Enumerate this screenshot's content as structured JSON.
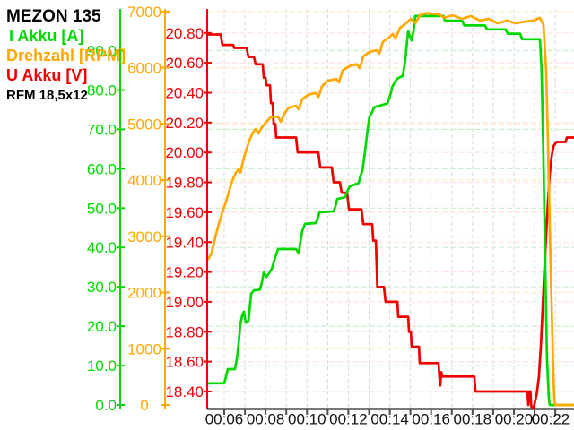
{
  "chart_data": {
    "type": "line",
    "title": "MEZON 135",
    "annotation": "RFM 18,5x12",
    "legend": [
      {
        "label": "I Akku [A]",
        "color": "#00d800"
      },
      {
        "label": "Drehzahl [RPM]",
        "color": "#ffa800"
      },
      {
        "label": "U Akku [V]",
        "color": "#ee0000"
      }
    ],
    "grid": {
      "vertical_color": "#d9d9d9",
      "x_axis_color": "#4d4d4d",
      "x_label_color": "#111111"
    },
    "x_axis": {
      "unit": "mm:ss",
      "tick_from": 6,
      "tick_to": 22,
      "tick_step": 1,
      "range_minutes": [
        5.24,
        22.91
      ],
      "labeled_ticks": [
        {
          "t": 6,
          "label": "00:06"
        },
        {
          "t": 8,
          "label": "00:08"
        },
        {
          "t": 10,
          "label": "00:10"
        },
        {
          "t": 12,
          "label": "00:12"
        },
        {
          "t": 14,
          "label": "00:14"
        },
        {
          "t": 16,
          "label": "00:16"
        },
        {
          "t": 18,
          "label": "00:18"
        },
        {
          "t": 20,
          "label": "00:20"
        },
        {
          "t": 22,
          "label": "00:22"
        }
      ]
    },
    "y_axes": [
      {
        "id": "voltage",
        "label": "U Akku [V]",
        "color": "#ee0000",
        "grid_color": "#ffe2e2",
        "range": [
          18.29,
          20.96
        ],
        "ticks": [
          {
            "v": 18.4,
            "label": "18.40"
          },
          {
            "v": 18.6,
            "label": "18.60"
          },
          {
            "v": 18.8,
            "label": "18.80"
          },
          {
            "v": 19.0,
            "label": "19.00"
          },
          {
            "v": 19.2,
            "label": "19.20"
          },
          {
            "v": 19.4,
            "label": "19.40"
          },
          {
            "v": 19.6,
            "label": "19.60"
          },
          {
            "v": 19.8,
            "label": "19.80"
          },
          {
            "v": 20.0,
            "label": "20.00"
          },
          {
            "v": 20.2,
            "label": "20.20"
          },
          {
            "v": 20.4,
            "label": "20.40"
          },
          {
            "v": 20.6,
            "label": "20.60"
          },
          {
            "v": 20.8,
            "label": "20.80"
          }
        ]
      },
      {
        "id": "rpm",
        "label": "Drehzahl [RPM]",
        "color": "#ffa800",
        "grid_color": "#ffeccb",
        "range": [
          -64,
          7046
        ],
        "ticks": [
          {
            "v": 0,
            "label": "0"
          },
          {
            "v": 1000,
            "label": "1000"
          },
          {
            "v": 2000,
            "label": "2000"
          },
          {
            "v": 3000,
            "label": "3000"
          },
          {
            "v": 4000,
            "label": "4000"
          },
          {
            "v": 5000,
            "label": "5000"
          },
          {
            "v": 6000,
            "label": "6000"
          },
          {
            "v": 7000,
            "label": "7000"
          }
        ]
      },
      {
        "id": "current",
        "label": "I Akku [A]",
        "color": "#00d800",
        "grid_color": "#cdeecd",
        "range": [
          -0.9,
          100.6
        ],
        "ticks": [
          {
            "v": 0,
            "label": "0.0"
          },
          {
            "v": 10,
            "label": "10.0"
          },
          {
            "v": 20,
            "label": "20.0"
          },
          {
            "v": 30,
            "label": "30.0"
          },
          {
            "v": 40,
            "label": "40.0"
          },
          {
            "v": 50,
            "label": "50.0"
          },
          {
            "v": 60,
            "label": "60.0"
          },
          {
            "v": 70,
            "label": "70.0"
          },
          {
            "v": 80,
            "label": "80.0"
          },
          {
            "v": 90,
            "label": "90.0"
          }
        ]
      }
    ],
    "series": [
      {
        "name": "U Akku [V]",
        "axis": "voltage",
        "color": "#ee0000",
        "unit": "V",
        "points": [
          [
            5.24,
            20.79
          ],
          [
            5.83,
            20.79
          ],
          [
            5.91,
            20.72
          ],
          [
            6.43,
            20.72
          ],
          [
            6.48,
            20.7
          ],
          [
            7.08,
            20.7
          ],
          [
            7.17,
            20.64
          ],
          [
            7.43,
            20.64
          ],
          [
            7.52,
            20.59
          ],
          [
            7.86,
            20.59
          ],
          [
            7.91,
            20.5
          ],
          [
            8.0,
            20.5
          ],
          [
            8.04,
            20.45
          ],
          [
            8.21,
            20.45
          ],
          [
            8.26,
            20.33
          ],
          [
            8.34,
            20.33
          ],
          [
            8.39,
            20.19
          ],
          [
            8.47,
            20.19
          ],
          [
            8.51,
            20.1
          ],
          [
            9.47,
            20.1
          ],
          [
            9.55,
            20.0
          ],
          [
            10.55,
            20.0
          ],
          [
            10.64,
            19.9
          ],
          [
            11.2,
            19.9
          ],
          [
            11.29,
            19.8
          ],
          [
            11.59,
            19.8
          ],
          [
            11.68,
            19.73
          ],
          [
            11.94,
            19.73
          ],
          [
            12.03,
            19.62
          ],
          [
            12.63,
            19.62
          ],
          [
            12.72,
            19.52
          ],
          [
            13.15,
            19.52
          ],
          [
            13.2,
            19.41
          ],
          [
            13.33,
            19.41
          ],
          [
            13.4,
            19.1
          ],
          [
            13.72,
            19.1
          ],
          [
            13.8,
            19.0
          ],
          [
            14.37,
            19.0
          ],
          [
            14.41,
            18.9
          ],
          [
            14.89,
            18.9
          ],
          [
            14.93,
            18.8
          ],
          [
            15.02,
            18.8
          ],
          [
            15.06,
            18.7
          ],
          [
            15.41,
            18.7
          ],
          [
            15.45,
            18.59
          ],
          [
            16.36,
            18.59
          ],
          [
            16.4,
            18.5
          ],
          [
            16.44,
            18.44
          ],
          [
            16.49,
            18.53
          ],
          [
            16.54,
            18.5
          ],
          [
            18.09,
            18.5
          ],
          [
            18.14,
            18.4
          ],
          [
            20.65,
            18.4
          ],
          [
            20.7,
            18.31
          ],
          [
            20.74,
            18.4
          ],
          [
            20.8,
            18.4
          ],
          [
            20.84,
            18.3
          ],
          [
            20.95,
            18.29
          ],
          [
            21.1,
            18.38
          ],
          [
            21.21,
            18.5
          ],
          [
            21.3,
            18.7
          ],
          [
            21.39,
            18.95
          ],
          [
            21.47,
            19.2
          ],
          [
            21.56,
            19.45
          ],
          [
            21.65,
            19.67
          ],
          [
            21.73,
            19.85
          ],
          [
            21.82,
            19.97
          ],
          [
            21.91,
            20.04
          ],
          [
            22.05,
            20.07
          ],
          [
            22.5,
            20.07
          ],
          [
            22.56,
            20.1
          ],
          [
            22.91,
            20.1
          ]
        ]
      },
      {
        "name": "I Akku [A]",
        "axis": "current",
        "color": "#00d800",
        "unit": "A",
        "points": [
          [
            5.24,
            5.5
          ],
          [
            6.0,
            5.5
          ],
          [
            6.09,
            7.3
          ],
          [
            6.17,
            9.1
          ],
          [
            6.52,
            9.1
          ],
          [
            6.61,
            11.8
          ],
          [
            6.69,
            15.3
          ],
          [
            6.78,
            20.5
          ],
          [
            6.87,
            22.8
          ],
          [
            6.95,
            23.7
          ],
          [
            7.04,
            20.9
          ],
          [
            7.17,
            21.4
          ],
          [
            7.3,
            28.2
          ],
          [
            7.43,
            29.1
          ],
          [
            7.73,
            29.3
          ],
          [
            7.82,
            31.2
          ],
          [
            7.91,
            33.7
          ],
          [
            8.04,
            32.5
          ],
          [
            8.17,
            33.5
          ],
          [
            8.3,
            34.6
          ],
          [
            8.43,
            36.9
          ],
          [
            8.6,
            39.6
          ],
          [
            9.47,
            39.6
          ],
          [
            9.6,
            38.5
          ],
          [
            9.68,
            41.4
          ],
          [
            9.77,
            44.2
          ],
          [
            9.9,
            46.0
          ],
          [
            10.42,
            46.2
          ],
          [
            10.51,
            47.1
          ],
          [
            10.6,
            48.9
          ],
          [
            11.29,
            49.2
          ],
          [
            11.38,
            50.5
          ],
          [
            11.46,
            52.3
          ],
          [
            11.85,
            52.8
          ],
          [
            11.94,
            54.2
          ],
          [
            12.07,
            55.5
          ],
          [
            12.5,
            56.4
          ],
          [
            12.59,
            58.3
          ],
          [
            12.68,
            59.4
          ],
          [
            12.81,
            64.7
          ],
          [
            12.94,
            70.3
          ],
          [
            13.02,
            73.3
          ],
          [
            13.15,
            74.4
          ],
          [
            13.24,
            75.6
          ],
          [
            13.89,
            76.6
          ],
          [
            14.07,
            79.5
          ],
          [
            14.11,
            80.6
          ],
          [
            14.24,
            82.0
          ],
          [
            14.37,
            82.9
          ],
          [
            14.63,
            83.6
          ],
          [
            14.76,
            88.0
          ],
          [
            14.84,
            92.5
          ],
          [
            14.89,
            94.9
          ],
          [
            15.06,
            92.6
          ],
          [
            15.15,
            95.0
          ],
          [
            15.23,
            98.8
          ],
          [
            16.6,
            98.8
          ],
          [
            16.67,
            97.6
          ],
          [
            17.5,
            97.6
          ],
          [
            17.6,
            96.4
          ],
          [
            18.6,
            96.4
          ],
          [
            18.7,
            95.4
          ],
          [
            19.6,
            95.4
          ],
          [
            19.7,
            94.3
          ],
          [
            20.3,
            94.3
          ],
          [
            20.4,
            92.9
          ],
          [
            21.26,
            92.9
          ],
          [
            21.34,
            84.7
          ],
          [
            21.43,
            61.9
          ],
          [
            21.52,
            34.6
          ],
          [
            21.6,
            11.8
          ],
          [
            21.69,
            1.6
          ],
          [
            21.73,
            0
          ],
          [
            22.91,
            0
          ]
        ]
      },
      {
        "name": "Drehzahl [RPM]",
        "axis": "rpm",
        "color": "#ffa800",
        "unit": "RPM",
        "points": [
          [
            5.24,
            2600
          ],
          [
            5.39,
            2700
          ],
          [
            5.57,
            2990
          ],
          [
            5.74,
            3220
          ],
          [
            5.91,
            3430
          ],
          [
            6.09,
            3620
          ],
          [
            6.26,
            3840
          ],
          [
            6.39,
            3990
          ],
          [
            6.56,
            4130
          ],
          [
            6.69,
            4190
          ],
          [
            6.78,
            4130
          ],
          [
            6.91,
            4340
          ],
          [
            7.04,
            4500
          ],
          [
            7.21,
            4700
          ],
          [
            7.39,
            4850
          ],
          [
            7.52,
            4910
          ],
          [
            7.65,
            4830
          ],
          [
            7.82,
            4940
          ],
          [
            8.04,
            5040
          ],
          [
            8.25,
            5120
          ],
          [
            8.6,
            5130
          ],
          [
            8.73,
            5040
          ],
          [
            8.95,
            5210
          ],
          [
            9.12,
            5290
          ],
          [
            9.47,
            5320
          ],
          [
            9.6,
            5260
          ],
          [
            9.77,
            5440
          ],
          [
            10.07,
            5520
          ],
          [
            10.42,
            5550
          ],
          [
            10.55,
            5480
          ],
          [
            10.73,
            5670
          ],
          [
            11.03,
            5770
          ],
          [
            11.42,
            5800
          ],
          [
            11.55,
            5740
          ],
          [
            11.72,
            5950
          ],
          [
            12.07,
            6030
          ],
          [
            12.42,
            6060
          ],
          [
            12.55,
            5990
          ],
          [
            12.72,
            6200
          ],
          [
            13.02,
            6280
          ],
          [
            13.37,
            6310
          ],
          [
            13.5,
            6250
          ],
          [
            13.67,
            6460
          ],
          [
            13.98,
            6540
          ],
          [
            14.15,
            6600
          ],
          [
            14.28,
            6520
          ],
          [
            14.5,
            6710
          ],
          [
            14.76,
            6780
          ],
          [
            15.02,
            6870
          ],
          [
            15.24,
            6790
          ],
          [
            15.45,
            6930
          ],
          [
            15.75,
            6970
          ],
          [
            16.4,
            6950
          ],
          [
            16.62,
            6890
          ],
          [
            17.05,
            6930
          ],
          [
            17.49,
            6870
          ],
          [
            17.92,
            6920
          ],
          [
            18.35,
            6840
          ],
          [
            18.79,
            6870
          ],
          [
            19.22,
            6790
          ],
          [
            19.66,
            6840
          ],
          [
            20.09,
            6790
          ],
          [
            20.52,
            6820
          ],
          [
            20.96,
            6840
          ],
          [
            21.26,
            6890
          ],
          [
            21.43,
            6760
          ],
          [
            21.56,
            5930
          ],
          [
            21.65,
            4660
          ],
          [
            21.73,
            3220
          ],
          [
            21.82,
            1790
          ],
          [
            21.91,
            510
          ],
          [
            21.96,
            60
          ],
          [
            22.0,
            0
          ],
          [
            22.91,
            0
          ]
        ]
      }
    ]
  }
}
